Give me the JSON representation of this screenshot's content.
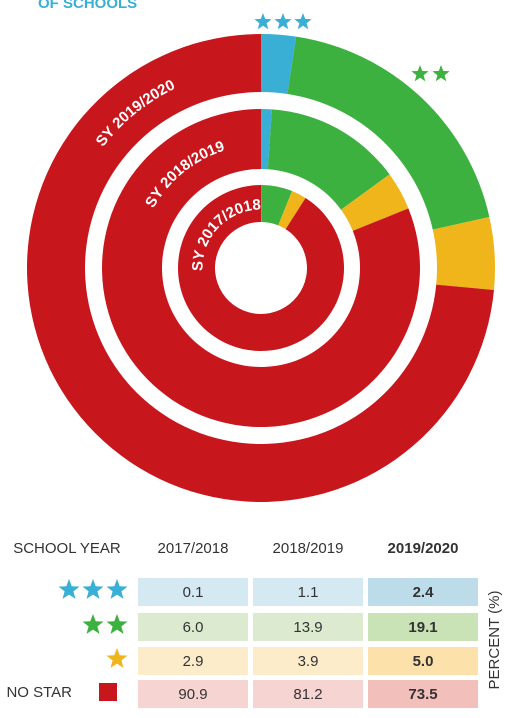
{
  "chart_data": {
    "type": "donut",
    "title": "OF SCHOOLS",
    "table_header": "SCHOOL YEAR",
    "categories": [
      "2017/2018",
      "2018/2019",
      "2019/2020"
    ],
    "ring_labels": [
      "SY 2017/2018",
      "SY 2018/2019",
      "SY 2019/2020"
    ],
    "value_axis_label": "PERCENT (%)",
    "series": [
      {
        "color": "#3aafd5",
        "values": [
          0.1,
          1.1,
          2.4
        ],
        "value_labels": [
          "0.1",
          "1.1",
          "2.4"
        ]
      },
      {
        "color": "#3db13f",
        "values": [
          6.0,
          13.9,
          19.1
        ],
        "value_labels": [
          "6.0",
          "13.9",
          "19.1"
        ]
      },
      {
        "color": "#f0b51b",
        "values": [
          2.9,
          3.9,
          5.0
        ],
        "value_labels": [
          "2.9",
          "3.9",
          "5.0"
        ]
      },
      {
        "name": "NO STAR",
        "color": "#c8161d",
        "values": [
          90.9,
          81.2,
          73.5
        ],
        "value_labels": [
          "90.9",
          "81.2",
          "73.5"
        ]
      }
    ]
  }
}
